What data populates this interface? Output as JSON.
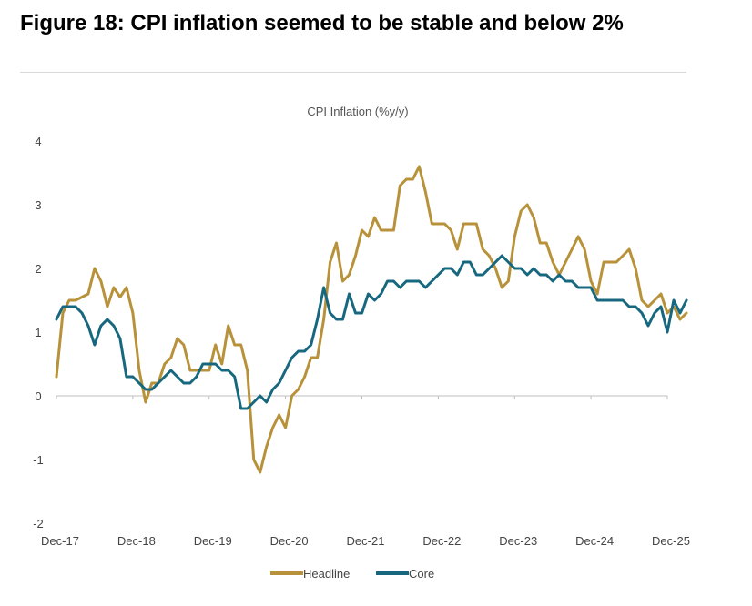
{
  "figure": {
    "title": "Figure 18: CPI inflation seemed to be stable and below 2%"
  },
  "colors": {
    "headline": "#B8923A",
    "core": "#17687F",
    "axis": "#bfbfbf"
  },
  "chart_data": {
    "type": "line",
    "title": "CPI Inflation (%y/y)",
    "xlabel": "",
    "ylabel": "",
    "ylim": [
      -2,
      4
    ],
    "yticks": [
      "-2",
      "-1",
      "0",
      "1",
      "2",
      "3",
      "4"
    ],
    "x_tick_labels": [
      "Dec-17",
      "Dec-18",
      "Dec-19",
      "Dec-20",
      "Dec-21",
      "Dec-22",
      "Dec-23",
      "Dec-24",
      "Dec-25"
    ],
    "x_start": "Dec-17",
    "frequency": "monthly",
    "series": [
      {
        "name": "Headline",
        "values": [
          0.3,
          1.3,
          1.5,
          1.5,
          1.55,
          1.6,
          2.0,
          1.8,
          1.4,
          1.7,
          1.55,
          1.7,
          1.3,
          0.4,
          -0.1,
          0.2,
          0.2,
          0.5,
          0.6,
          0.9,
          0.8,
          0.4,
          0.4,
          0.4,
          0.4,
          0.8,
          0.5,
          1.1,
          0.8,
          0.8,
          0.4,
          -1.0,
          -1.2,
          -0.8,
          -0.5,
          -0.3,
          -0.5,
          0.0,
          0.1,
          0.3,
          0.6,
          0.6,
          1.2,
          2.1,
          2.4,
          1.8,
          1.9,
          2.2,
          2.6,
          2.5,
          2.8,
          2.6,
          2.6,
          2.6,
          3.3,
          3.4,
          3.4,
          3.6,
          3.2,
          2.7,
          2.7,
          2.7,
          2.6,
          2.3,
          2.7,
          2.7,
          2.7,
          2.3,
          2.2,
          2.0,
          1.7,
          1.8,
          2.5,
          2.9,
          3.0,
          2.8,
          2.4,
          2.4,
          2.1,
          1.9,
          2.1,
          2.3,
          2.5,
          2.3,
          1.8,
          1.6,
          2.1,
          2.1,
          2.1,
          2.2,
          2.3,
          2.0,
          1.5,
          1.4,
          1.5,
          1.6,
          1.3,
          1.4,
          1.2,
          1.3
        ]
      },
      {
        "name": "Core",
        "values": [
          1.2,
          1.4,
          1.4,
          1.4,
          1.3,
          1.1,
          0.8,
          1.1,
          1.2,
          1.1,
          0.9,
          0.3,
          0.3,
          0.2,
          0.1,
          0.1,
          0.2,
          0.3,
          0.4,
          0.3,
          0.2,
          0.2,
          0.3,
          0.5,
          0.5,
          0.5,
          0.4,
          0.4,
          0.3,
          -0.2,
          -0.2,
          -0.1,
          0.0,
          -0.1,
          0.1,
          0.2,
          0.4,
          0.6,
          0.7,
          0.7,
          0.8,
          1.2,
          1.7,
          1.3,
          1.2,
          1.2,
          1.6,
          1.3,
          1.3,
          1.6,
          1.5,
          1.6,
          1.8,
          1.8,
          1.7,
          1.8,
          1.8,
          1.8,
          1.7,
          1.8,
          1.9,
          2.0,
          2.0,
          1.9,
          2.1,
          2.1,
          1.9,
          1.9,
          2.0,
          2.1,
          2.2,
          2.1,
          2.0,
          2.0,
          1.9,
          2.0,
          1.9,
          1.9,
          1.8,
          1.9,
          1.8,
          1.8,
          1.7,
          1.7,
          1.7,
          1.5,
          1.5,
          1.5,
          1.5,
          1.5,
          1.4,
          1.4,
          1.3,
          1.1,
          1.3,
          1.4,
          1.0,
          1.5,
          1.3,
          1.5
        ]
      }
    ],
    "legend": {
      "position": "bottom-center",
      "entries": [
        "Headline",
        "Core"
      ]
    }
  }
}
